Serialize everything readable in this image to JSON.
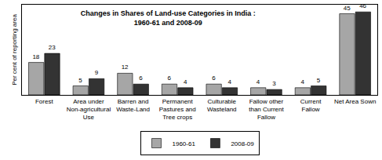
{
  "chart_data": {
    "type": "bar",
    "title": "Changes in Shares of Land-use Categories in India : 1960-61 and 2008-09",
    "y_label": "Per cent of reporting area",
    "categories": [
      "Forest",
      "Area under Non-agricultural Use",
      "Barren and Waste-Land",
      "Permanent Pastures and Tree crops",
      "Culturable Wasteland",
      "Fallow other than Current Fallow",
      "Current Fallow",
      "Net Area Sown"
    ],
    "series": [
      {
        "name": "1960-61",
        "color": "#a6a6a6",
        "values": [
          18,
          5,
          12,
          6,
          6,
          4,
          4,
          45
        ]
      },
      {
        "name": "2008-09",
        "color": "#333333",
        "values": [
          23,
          9,
          6,
          4,
          4,
          3,
          5,
          46
        ]
      }
    ],
    "ylim": [
      0,
      50
    ],
    "data_labels": true,
    "tick_labels": "x",
    "legend": "bottom",
    "grid": false
  }
}
